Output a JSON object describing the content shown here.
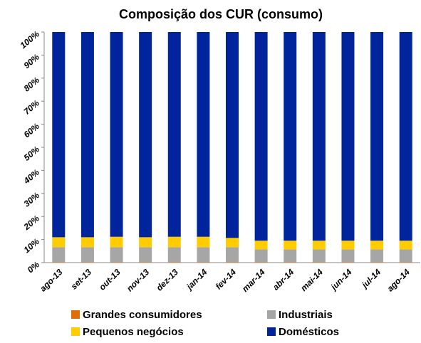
{
  "chart_data": {
    "type": "stacked_bar",
    "title": "Composição dos CUR (consumo)",
    "categories": [
      "ago-13",
      "set-13",
      "out-13",
      "nov-13",
      "dez-13",
      "jan-14",
      "fev-14",
      "mar-14",
      "abr-14",
      "mai-14",
      "jun-14",
      "jul-14",
      "ago-14"
    ],
    "series": [
      {
        "name": "Grandes consumidores",
        "color": "#e36c0a",
        "values": [
          0.2,
          0.2,
          0.2,
          0.2,
          0.2,
          0.2,
          0.2,
          0.2,
          0.2,
          0.2,
          0.2,
          0.2,
          0.2
        ]
      },
      {
        "name": "Industriais",
        "color": "#a6a6a6",
        "values": [
          6.5,
          6.5,
          6.5,
          6.5,
          6.5,
          6.5,
          6.5,
          5.5,
          5.5,
          5.5,
          5.5,
          5.5,
          5.5
        ]
      },
      {
        "name": "Pequenos negócios",
        "color": "#ffcc00",
        "values": [
          4.3,
          4.3,
          4.5,
          4.3,
          4.5,
          4.5,
          4.0,
          3.8,
          3.8,
          3.8,
          3.8,
          3.8,
          3.8
        ]
      },
      {
        "name": "Domésticos",
        "color": "#00249c",
        "values": [
          89.0,
          89.0,
          88.8,
          89.0,
          88.8,
          88.8,
          89.3,
          90.5,
          90.5,
          90.5,
          90.5,
          90.5,
          90.5
        ]
      }
    ],
    "ylim": [
      0,
      100
    ],
    "yticks": [
      {
        "value": 0,
        "label": "0%"
      },
      {
        "value": 10,
        "label": "10%"
      },
      {
        "value": 20,
        "label": "20%"
      },
      {
        "value": 30,
        "label": "30%"
      },
      {
        "value": 40,
        "label": "40%"
      },
      {
        "value": 50,
        "label": "50%"
      },
      {
        "value": 60,
        "label": "60%"
      },
      {
        "value": 70,
        "label": "70%"
      },
      {
        "value": 80,
        "label": "80%"
      },
      {
        "value": 90,
        "label": "90%"
      },
      {
        "value": 100,
        "label": "100%"
      }
    ],
    "legend": "bottom"
  }
}
